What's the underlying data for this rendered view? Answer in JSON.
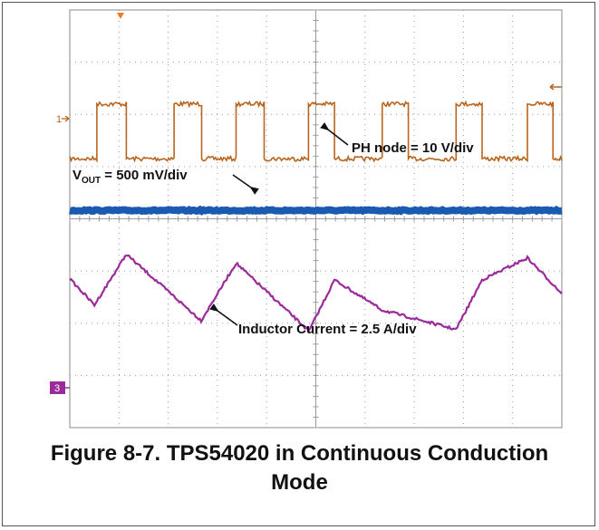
{
  "figure": {
    "caption_line1": "Figure 8-7. TPS54020 in Continuous Conduction",
    "caption_line2": "Mode"
  },
  "markers": {
    "ch1": "1",
    "ch3": "3"
  },
  "annotations": {
    "ph_node": "PH node = 10 V/div",
    "vout_prefix": "V",
    "vout_sub": "OUT",
    "vout_suffix": " = 500 mV/div",
    "inductor": "Inductor Current = 2.5 A/div"
  },
  "colors": {
    "ch1": "#b8651e",
    "ch2": "#1a5ab0",
    "ch3": "#9b2b9b",
    "grid": "#9a9a9a",
    "trigger": "#f07a2a"
  },
  "chart_data": {
    "type": "line",
    "title": "Figure 8-7. TPS54020 in Continuous Conduction Mode",
    "grid": true,
    "divisions": {
      "x": 10,
      "y": 8
    },
    "series": [
      {
        "name": "PH node = 10 V/div",
        "x": [
          0,
          0.3,
          0.55,
          0.55,
          1.15,
          1.15,
          2.12,
          2.12,
          2.68,
          2.68,
          3.38,
          3.38,
          3.95,
          3.95,
          4.85,
          4.85,
          5.38,
          5.38,
          6.35,
          6.35,
          6.88,
          6.88,
          7.85,
          7.85,
          8.38,
          8.38,
          9.3,
          9.3,
          9.82,
          9.82,
          10
        ],
        "y": [
          5.15,
          5.15,
          5.15,
          6.2,
          6.2,
          5.15,
          5.15,
          6.2,
          6.2,
          5.15,
          5.15,
          6.2,
          6.2,
          5.15,
          5.15,
          6.2,
          6.2,
          5.15,
          5.15,
          6.2,
          6.2,
          5.15,
          5.15,
          6.2,
          6.2,
          5.15,
          5.15,
          6.2,
          6.2,
          5.15,
          5.15
        ]
      },
      {
        "name": "VOUT = 500 mV/div",
        "x": [
          0,
          10
        ],
        "y": [
          4.16,
          4.16
        ]
      },
      {
        "name": "Inductor Current = 2.5 A/div",
        "x": [
          0,
          0.5,
          1.15,
          2.67,
          3.38,
          4.86,
          5.38,
          6.35,
          7.85,
          8.38,
          9.3,
          10
        ],
        "y": [
          2.85,
          2.35,
          3.32,
          2.05,
          3.15,
          1.85,
          2.83,
          2.25,
          1.88,
          2.83,
          3.25,
          2.57
        ]
      }
    ]
  }
}
